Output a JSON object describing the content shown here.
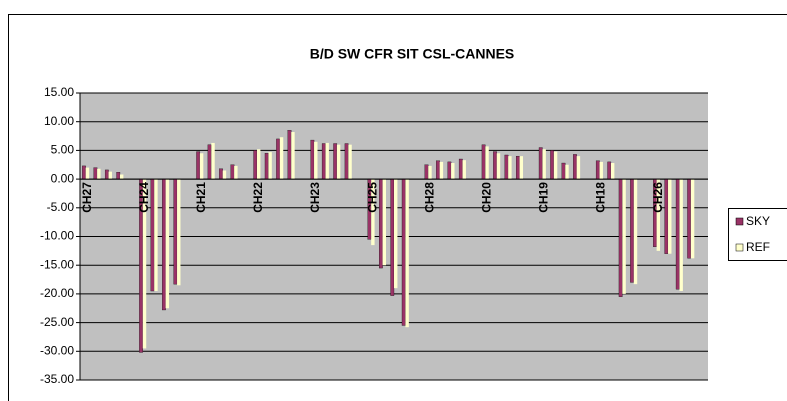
{
  "chart_data": {
    "type": "bar",
    "title": "B/D SW CFR SIT CSL-CANNES",
    "categories": [
      "CH27",
      null,
      null,
      null,
      null,
      "CH24",
      null,
      null,
      null,
      null,
      "CH21",
      null,
      null,
      null,
      null,
      "CH22",
      null,
      null,
      null,
      null,
      "CH23",
      null,
      null,
      null,
      null,
      "CH25",
      null,
      null,
      null,
      null,
      "CH28",
      null,
      null,
      null,
      null,
      "CH20",
      null,
      null,
      null,
      null,
      "CH19",
      null,
      null,
      null,
      null,
      "CH18",
      null,
      null,
      null,
      null,
      "CH26",
      null,
      null,
      null,
      null
    ],
    "series": [
      {
        "name": "SKY",
        "color": "#993366",
        "values": [
          2.3,
          2.0,
          1.6,
          1.2,
          null,
          -30.2,
          -19.5,
          -22.8,
          -18.3,
          null,
          4.8,
          6.0,
          1.8,
          2.5,
          null,
          5.0,
          4.5,
          7.0,
          8.5,
          null,
          6.8,
          6.2,
          6.2,
          6.2,
          null,
          -10.5,
          -15.5,
          -20.3,
          -25.5,
          null,
          2.5,
          3.2,
          3.0,
          3.5,
          null,
          6.0,
          4.8,
          4.2,
          4.0,
          null,
          5.5,
          5.0,
          2.8,
          4.3,
          null,
          3.2,
          3.0,
          -20.5,
          -18.0,
          null,
          -11.8,
          -13.0,
          -19.2,
          -13.8,
          null
        ]
      },
      {
        "name": "REF",
        "color": "#ffffcc",
        "values": [
          2.0,
          1.8,
          1.3,
          0.8,
          null,
          -29.5,
          -19.5,
          -22.5,
          -18.5,
          null,
          4.5,
          6.3,
          1.5,
          2.3,
          null,
          5.2,
          4.7,
          7.3,
          8.2,
          null,
          6.5,
          6.3,
          6.0,
          6.0,
          null,
          -11.5,
          -15.0,
          -19.0,
          -25.8,
          null,
          2.3,
          3.0,
          2.8,
          3.3,
          null,
          5.7,
          4.5,
          4.0,
          4.0,
          null,
          5.2,
          4.8,
          2.5,
          4.0,
          null,
          3.0,
          2.8,
          -20.0,
          -18.3,
          null,
          -12.5,
          -13.0,
          -19.5,
          -13.8,
          null
        ]
      }
    ],
    "ylim": [
      -35,
      15
    ],
    "yticks": [
      {
        "value": 15,
        "label": "15.00"
      },
      {
        "value": 10,
        "label": "10.00"
      },
      {
        "value": 5,
        "label": "5.00"
      },
      {
        "value": 0,
        "label": "0.00"
      },
      {
        "value": -5,
        "label": "-5.00"
      },
      {
        "value": -10,
        "label": "-10.00"
      },
      {
        "value": -15,
        "label": "-15.00"
      },
      {
        "value": -20,
        "label": "-20.00"
      },
      {
        "value": -25,
        "label": "-25.00"
      },
      {
        "value": -30,
        "label": "-30.00"
      },
      {
        "value": -35,
        "label": "-35.00"
      }
    ],
    "grid": true
  }
}
